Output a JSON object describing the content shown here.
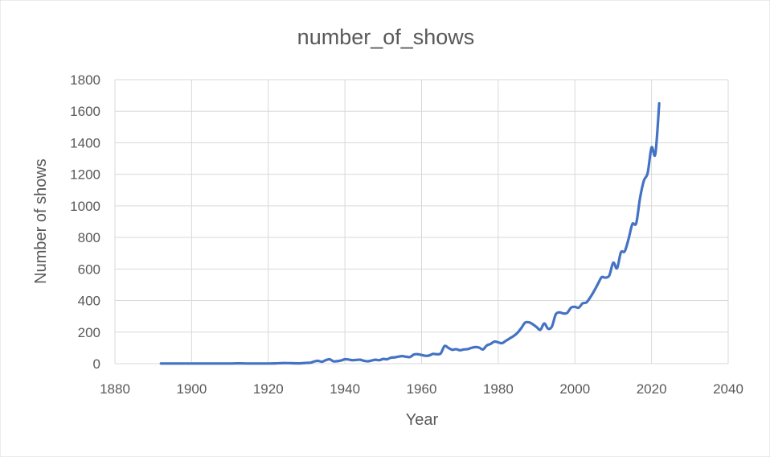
{
  "chart_data": {
    "type": "line",
    "title": "number_of_shows",
    "xlabel": "Year",
    "ylabel": "Number of shows",
    "xlim": [
      1880,
      2040
    ],
    "ylim": [
      0,
      1800
    ],
    "x_ticks": [
      1880,
      1900,
      1920,
      1940,
      1960,
      1980,
      2000,
      2020,
      2040
    ],
    "y_ticks": [
      0,
      200,
      400,
      600,
      800,
      1000,
      1200,
      1400,
      1600,
      1800
    ],
    "grid": true,
    "legend": "none",
    "series": [
      {
        "color": "#4472c4",
        "points": [
          [
            1892,
            1
          ],
          [
            1896,
            1
          ],
          [
            1900,
            1
          ],
          [
            1905,
            1
          ],
          [
            1910,
            1
          ],
          [
            1912,
            2
          ],
          [
            1915,
            1
          ],
          [
            1918,
            1
          ],
          [
            1920,
            1
          ],
          [
            1922,
            2
          ],
          [
            1924,
            4
          ],
          [
            1926,
            3
          ],
          [
            1928,
            2
          ],
          [
            1930,
            5
          ],
          [
            1931,
            6
          ],
          [
            1932,
            14
          ],
          [
            1933,
            18
          ],
          [
            1934,
            12
          ],
          [
            1935,
            22
          ],
          [
            1936,
            28
          ],
          [
            1937,
            15
          ],
          [
            1938,
            16
          ],
          [
            1939,
            20
          ],
          [
            1940,
            28
          ],
          [
            1941,
            26
          ],
          [
            1942,
            22
          ],
          [
            1943,
            24
          ],
          [
            1944,
            25
          ],
          [
            1945,
            18
          ],
          [
            1946,
            15
          ],
          [
            1947,
            20
          ],
          [
            1948,
            25
          ],
          [
            1949,
            22
          ],
          [
            1950,
            30
          ],
          [
            1951,
            28
          ],
          [
            1952,
            38
          ],
          [
            1953,
            40
          ],
          [
            1954,
            45
          ],
          [
            1955,
            48
          ],
          [
            1956,
            44
          ],
          [
            1957,
            42
          ],
          [
            1958,
            58
          ],
          [
            1959,
            60
          ],
          [
            1960,
            55
          ],
          [
            1961,
            50
          ],
          [
            1962,
            52
          ],
          [
            1963,
            62
          ],
          [
            1964,
            60
          ],
          [
            1965,
            65
          ],
          [
            1966,
            112
          ],
          [
            1967,
            100
          ],
          [
            1968,
            88
          ],
          [
            1969,
            92
          ],
          [
            1970,
            85
          ],
          [
            1971,
            90
          ],
          [
            1972,
            92
          ],
          [
            1973,
            100
          ],
          [
            1974,
            105
          ],
          [
            1975,
            102
          ],
          [
            1976,
            90
          ],
          [
            1977,
            115
          ],
          [
            1978,
            125
          ],
          [
            1979,
            140
          ],
          [
            1980,
            135
          ],
          [
            1981,
            130
          ],
          [
            1982,
            145
          ],
          [
            1983,
            160
          ],
          [
            1984,
            175
          ],
          [
            1985,
            195
          ],
          [
            1986,
            225
          ],
          [
            1987,
            260
          ],
          [
            1988,
            262
          ],
          [
            1989,
            250
          ],
          [
            1990,
            232
          ],
          [
            1991,
            215
          ],
          [
            1992,
            255
          ],
          [
            1993,
            222
          ],
          [
            1994,
            235
          ],
          [
            1995,
            312
          ],
          [
            1996,
            325
          ],
          [
            1997,
            318
          ],
          [
            1998,
            322
          ],
          [
            1999,
            355
          ],
          [
            2000,
            360
          ],
          [
            2001,
            355
          ],
          [
            2002,
            382
          ],
          [
            2003,
            388
          ],
          [
            2004,
            420
          ],
          [
            2005,
            460
          ],
          [
            2006,
            505
          ],
          [
            2007,
            548
          ],
          [
            2008,
            545
          ],
          [
            2009,
            560
          ],
          [
            2010,
            640
          ],
          [
            2011,
            605
          ],
          [
            2012,
            705
          ],
          [
            2013,
            712
          ],
          [
            2014,
            790
          ],
          [
            2015,
            885
          ],
          [
            2016,
            890
          ],
          [
            2017,
            1050
          ],
          [
            2018,
            1160
          ],
          [
            2019,
            1210
          ],
          [
            2020,
            1370
          ],
          [
            2021,
            1330
          ],
          [
            2022,
            1650
          ]
        ]
      }
    ]
  }
}
